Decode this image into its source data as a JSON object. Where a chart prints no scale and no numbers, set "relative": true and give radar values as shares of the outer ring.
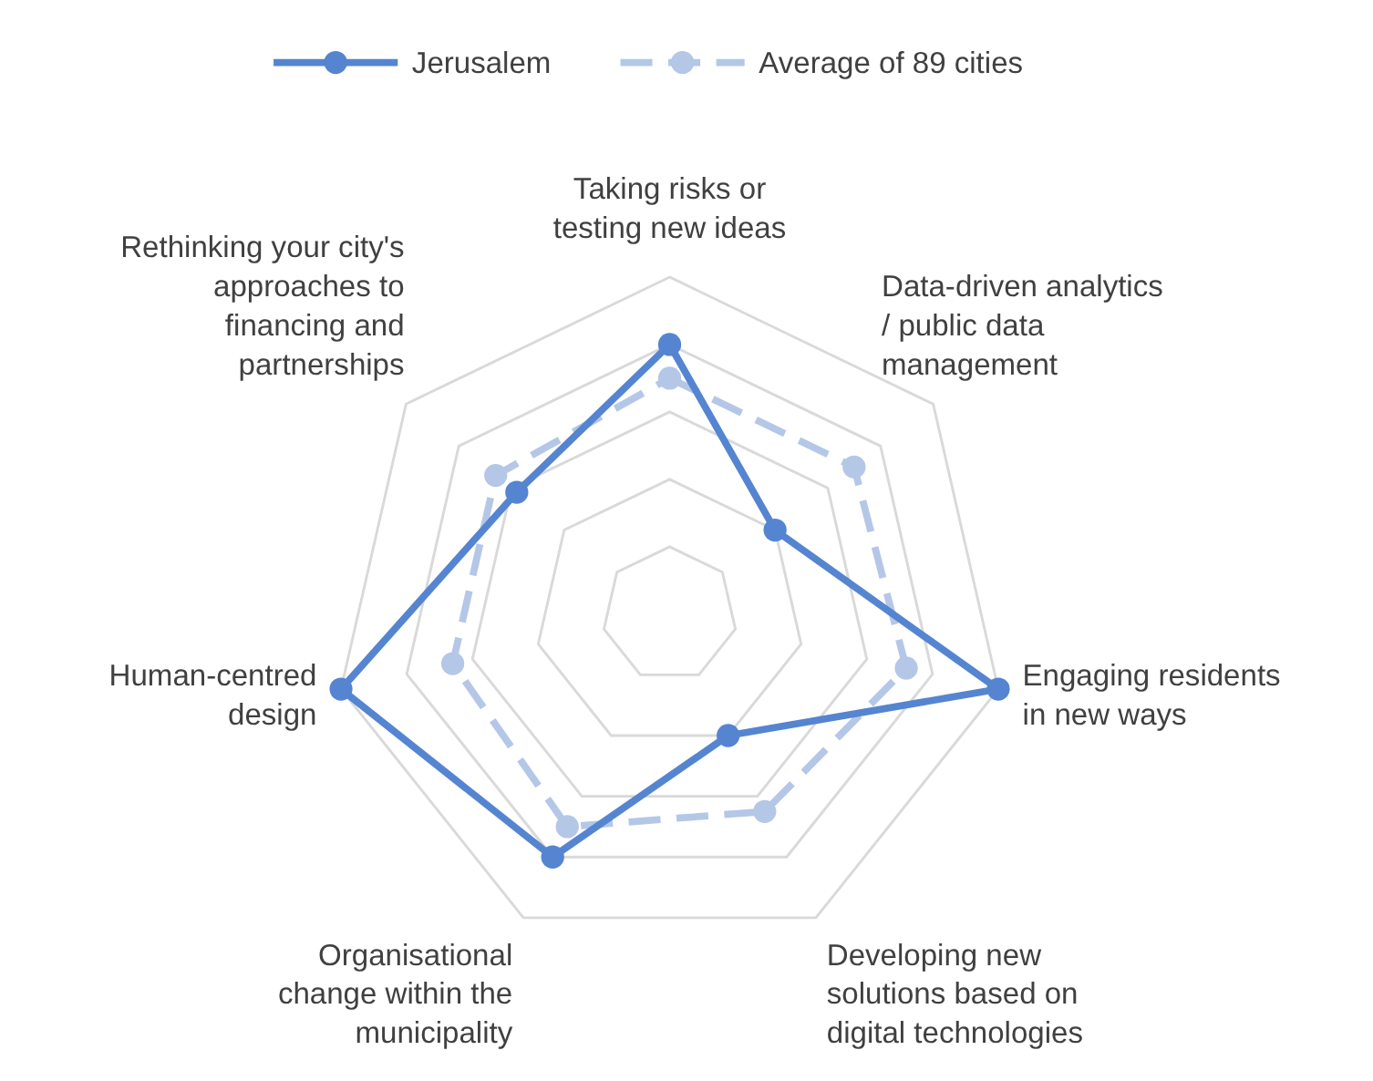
{
  "chart_data": {
    "type": "radar",
    "relative": true,
    "grid": true,
    "legend": "top",
    "marker": "circle",
    "categories": [
      "Taking risks or\ntesting new ideas",
      "Data-driven analytics\n/ public data\nmanagement",
      "Engaging residents\nin new ways",
      "Developing new\nsolutions based on\ndigital technologies",
      "Organisational\nchange within the\nmunicipality",
      "Human-centred\ndesign",
      "Rethinking your city's\napproaches to\nfinancing and\npartnerships"
    ],
    "series": [
      {
        "name": "Jerusalem",
        "color": "#5585d0",
        "line_style": "solid",
        "values": [
          0.8,
          0.4,
          1.0,
          0.4,
          0.8,
          1.0,
          0.58
        ]
      },
      {
        "name": "Average of 89 cities",
        "color": "#b4c7e7",
        "line_style": "dashed",
        "values": [
          0.7,
          0.7,
          0.72,
          0.65,
          0.7,
          0.66,
          0.66
        ]
      }
    ]
  }
}
